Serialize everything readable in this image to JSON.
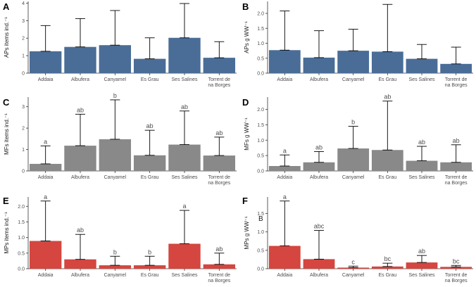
{
  "colors": {
    "blue": "#4a6d97",
    "gray": "#898989",
    "red": "#d4463f"
  },
  "chart_data": [
    {
      "panel": "A",
      "type": "bar",
      "ylabel": "APs items ind.⁻¹",
      "categories": [
        "Addaia",
        "Albufera",
        "Canyamel",
        "Es Grau",
        "Ses Salines",
        "Torrent de na Borges"
      ],
      "values": [
        1.25,
        1.5,
        1.6,
        0.82,
        2.02,
        0.88
      ],
      "errors": [
        2.72,
        3.12,
        3.58,
        2.02,
        3.98,
        1.8
      ],
      "ylim": [
        0,
        4.1
      ],
      "yticks": [
        "0",
        "1",
        "2",
        "3",
        "4"
      ],
      "ytick_values": [
        0,
        1,
        2,
        3,
        4
      ],
      "letters": [],
      "color": "blue"
    },
    {
      "panel": "B",
      "type": "bar",
      "ylabel": "APs g WW⁻¹",
      "categories": [
        "Addaia",
        "Albufera",
        "Canyamel",
        "Es Grau",
        "Ses Salines",
        "Torrent de na Borges"
      ],
      "values": [
        0.77,
        0.52,
        0.75,
        0.72,
        0.48,
        0.31
      ],
      "errors": [
        2.08,
        1.42,
        1.47,
        2.3,
        0.96,
        0.87
      ],
      "ylim": [
        0,
        2.4
      ],
      "yticks": [
        "0.0",
        "0.5",
        "1.0",
        "1.5",
        "2.0"
      ],
      "ytick_values": [
        0,
        0.5,
        1.0,
        1.5,
        2.0
      ],
      "letters": [],
      "color": "blue"
    },
    {
      "panel": "C",
      "type": "bar",
      "ylabel": "MFs items ind.⁻¹",
      "categories": [
        "Addaia",
        "Albufera",
        "Canyamel",
        "Es Grau",
        "Ses Salines",
        "Torrent de na Borges"
      ],
      "values": [
        0.33,
        1.18,
        1.48,
        0.73,
        1.23,
        0.72
      ],
      "errors": [
        1.17,
        2.65,
        3.32,
        1.9,
        2.8,
        1.58
      ],
      "ylim": [
        0,
        3.45
      ],
      "yticks": [
        "0",
        "1",
        "2",
        "3"
      ],
      "ytick_values": [
        0,
        1,
        2,
        3
      ],
      "letters": [
        "a",
        "ab",
        "b",
        "ab",
        "ab",
        "ab"
      ],
      "color": "gray"
    },
    {
      "panel": "D",
      "type": "bar",
      "ylabel": "MFs g WW⁻¹",
      "categories": [
        "Addaia",
        "Albufera",
        "Canyamel",
        "Es Grau",
        "Ses Salines",
        "Torrent de na Borges"
      ],
      "values": [
        0.16,
        0.28,
        0.73,
        0.68,
        0.33,
        0.28
      ],
      "errors": [
        0.52,
        0.63,
        1.45,
        2.27,
        0.8,
        0.85
      ],
      "ylim": [
        0,
        2.4
      ],
      "yticks": [
        "0.0",
        "0.5",
        "1.0",
        "1.5",
        "2.0"
      ],
      "ytick_values": [
        0,
        0.5,
        1.0,
        1.5,
        2.0
      ],
      "letters": [
        "a",
        "ab",
        "b",
        "ab",
        "ab",
        "ab"
      ],
      "color": "gray"
    },
    {
      "panel": "E",
      "type": "bar",
      "ylabel": "MPs items ind.⁻¹",
      "categories": [
        "Addaia",
        "Albufera",
        "Canyamel",
        "Es Grau",
        "Ses Salines",
        "Torrent de na Borges"
      ],
      "values": [
        0.89,
        0.3,
        0.11,
        0.11,
        0.8,
        0.14
      ],
      "errors": [
        2.17,
        1.1,
        0.4,
        0.4,
        1.87,
        0.5
      ],
      "ylim": [
        0,
        2.3
      ],
      "yticks": [
        "0.0",
        "0.5",
        "1.0",
        "1.5",
        "2.0"
      ],
      "ytick_values": [
        0,
        0.5,
        1.0,
        1.5,
        2.0
      ],
      "letters": [
        "a",
        "ab",
        "b",
        "b",
        "a",
        "ab"
      ],
      "color": "red"
    },
    {
      "panel": "F",
      "type": "bar",
      "ylabel": "MPs g WW⁻¹",
      "categories": [
        "Addaia",
        "Albufera",
        "Canyamel",
        "Es Grau",
        "Ses Salines",
        "Torrent de na Borges"
      ],
      "values": [
        0.62,
        0.26,
        0.03,
        0.06,
        0.17,
        0.05
      ],
      "errors": [
        1.84,
        1.04,
        0.07,
        0.15,
        0.36,
        0.09
      ],
      "ylim": [
        0,
        1.95
      ],
      "yticks": [
        "0.0",
        "0.5",
        "1.0",
        "1.5"
      ],
      "ytick_values": [
        0,
        0.5,
        1.0,
        1.5
      ],
      "letters": [
        "a",
        "abc",
        "c",
        "bc",
        "ab",
        "bc"
      ],
      "color": "red",
      "annotation": "B"
    }
  ]
}
